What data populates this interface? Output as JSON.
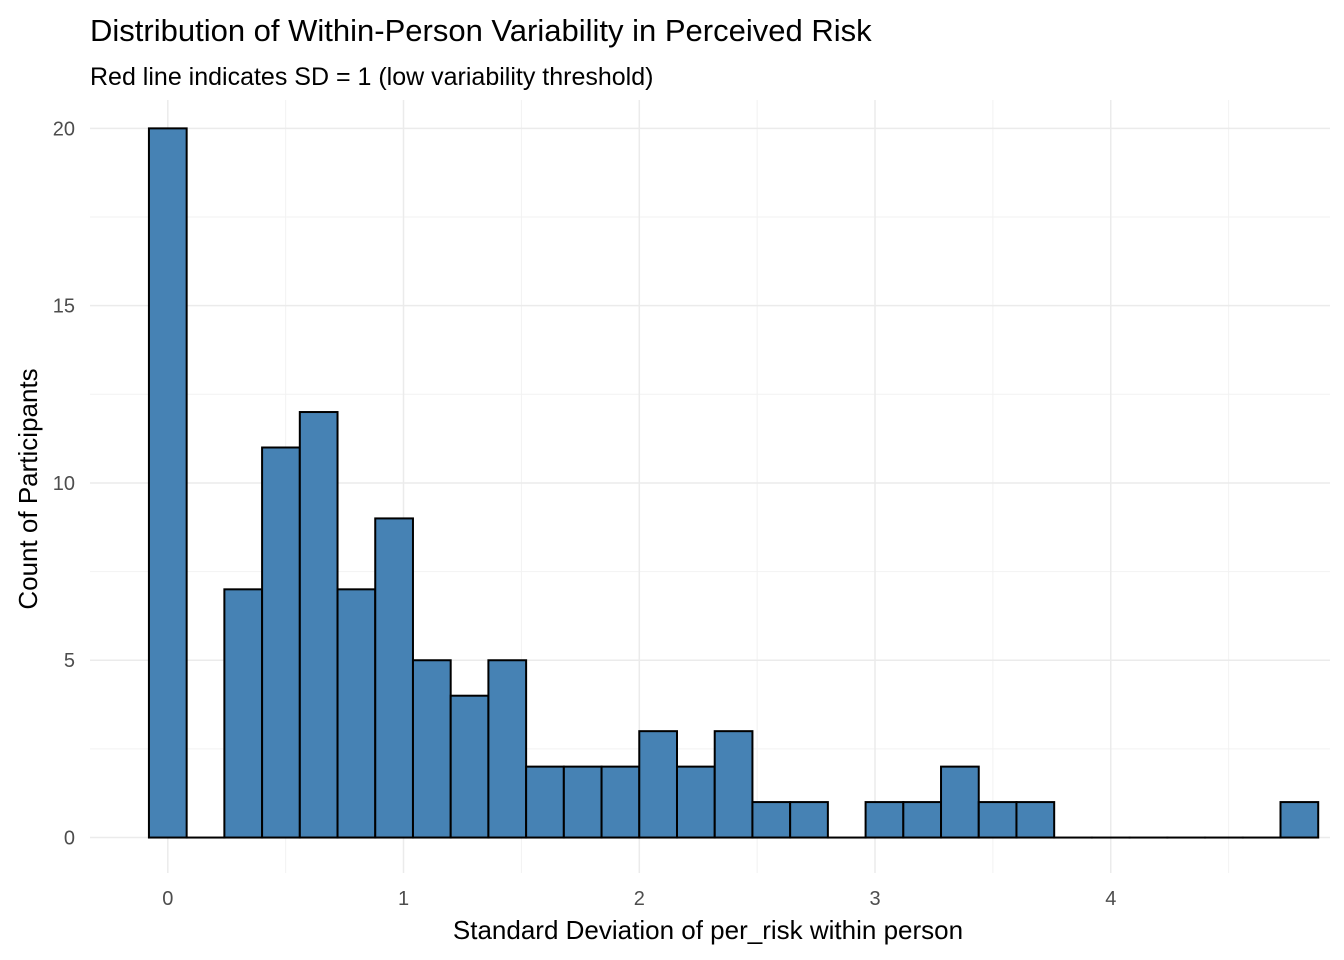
{
  "chart_data": {
    "type": "bar",
    "title": "Distribution of Within-Person Variability in Perceived Risk",
    "subtitle": "Red line indicates SD = 1 (low variability threshold)",
    "xlabel": "Standard Deviation of per_risk within person",
    "ylabel": "Count of Participants",
    "bin_width": 0.16,
    "bin_start": -0.08,
    "values": [
      20,
      0,
      7,
      11,
      12,
      7,
      9,
      5,
      4,
      5,
      2,
      2,
      2,
      3,
      2,
      3,
      1,
      1,
      0,
      1,
      1,
      2,
      1,
      1,
      0,
      0,
      0,
      0,
      0,
      0,
      1
    ],
    "xlim": [
      -0.33,
      4.93
    ],
    "ylim": [
      -1,
      20.8
    ],
    "x_ticks": [
      0,
      1,
      2,
      3,
      4
    ],
    "x_tick_labels": [
      "0",
      "1",
      "2",
      "3",
      "4"
    ],
    "y_ticks": [
      0,
      5,
      10,
      15,
      20
    ],
    "y_tick_labels": [
      "0",
      "5",
      "10",
      "15",
      "20"
    ],
    "grid": true,
    "colors": {
      "bar_fill": "#4682B4",
      "bar_outline": "#000000",
      "grid": "#ebebeb",
      "tick_text": "#4d4d4d"
    }
  }
}
